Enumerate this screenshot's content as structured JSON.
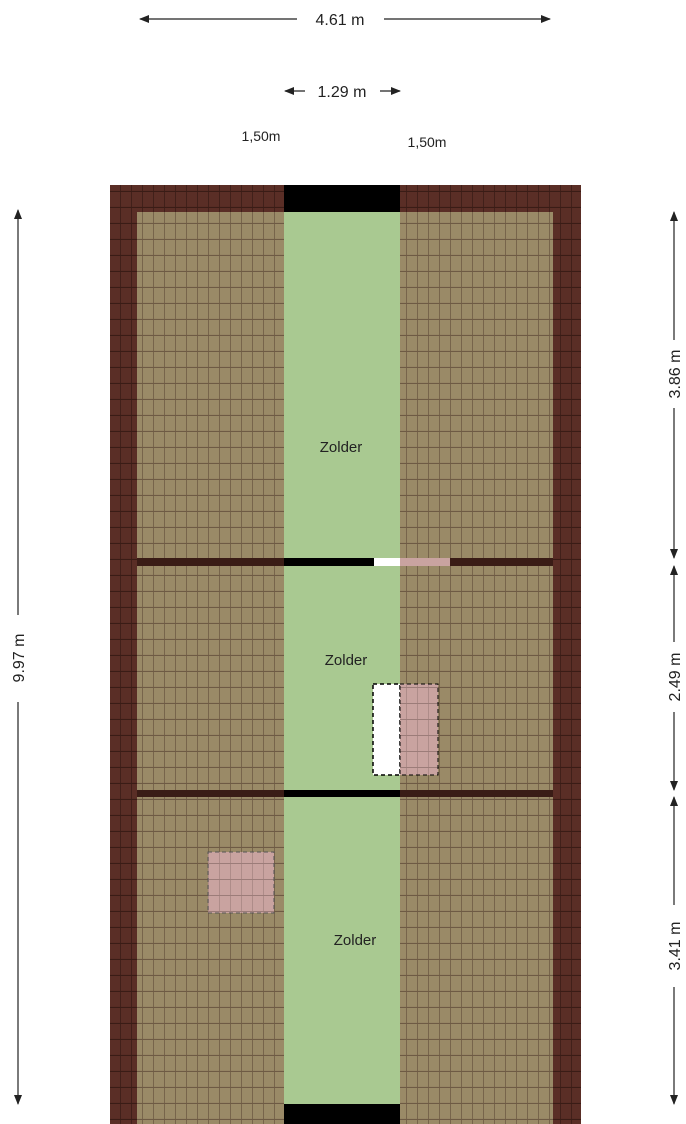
{
  "plan": {
    "colors": {
      "roof_edge": "#5a2e26",
      "roof_tile": "#9a8a67",
      "tile_line": "#6e5a44",
      "floor": "#a9c991",
      "wall": "#000000",
      "skylight": "#c9a3a0"
    },
    "rooms": [
      {
        "name": "Zolder"
      },
      {
        "name": "Zolder"
      },
      {
        "name": "Zolder"
      }
    ]
  },
  "dimensions": {
    "total_width": "4.61 m",
    "center_width": "1.29 m",
    "left_strip": "1,50m",
    "right_strip": "1,50m",
    "total_length": "9.97 m",
    "section_1": "3.86 m",
    "section_2": "2.49 m",
    "section_3": "3.41 m"
  }
}
